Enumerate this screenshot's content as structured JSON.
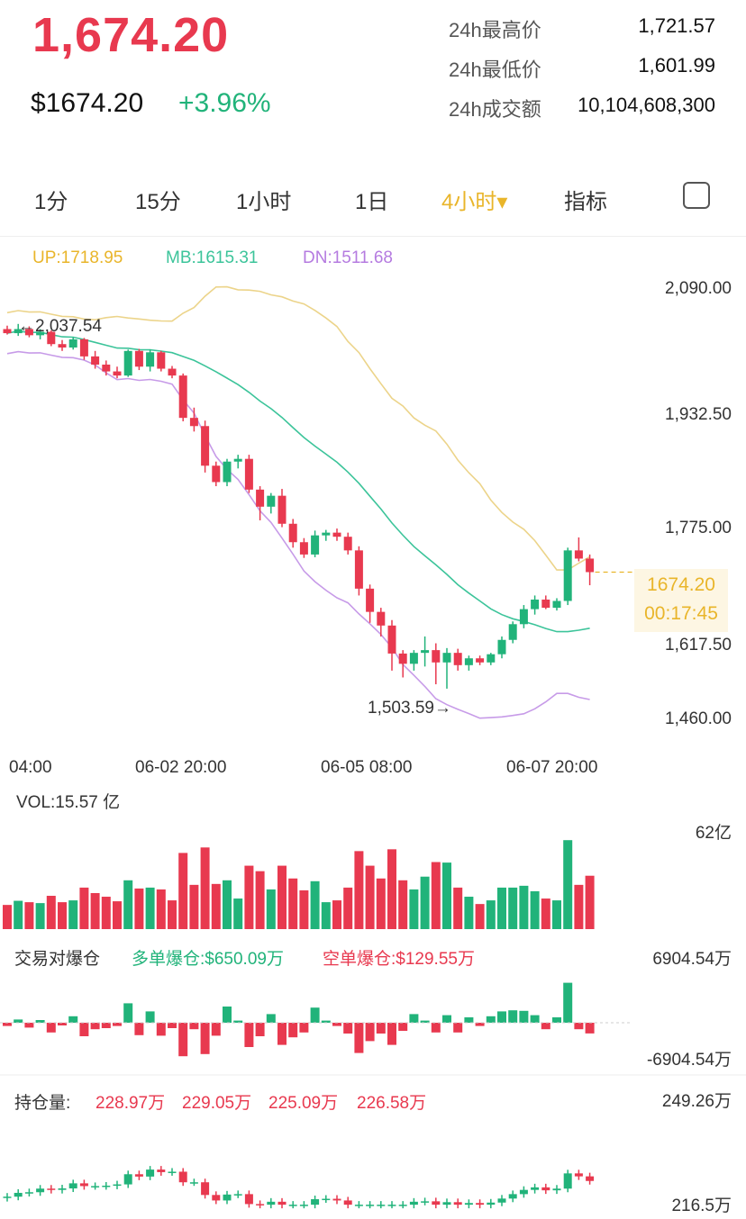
{
  "header": {
    "last_price": "1,674.20",
    "usd_price": "$1674.20",
    "change_pct": "+3.96%",
    "stats": [
      {
        "label": "24h最高价",
        "value": "1,721.57"
      },
      {
        "label": "24h最低价",
        "value": "1,601.99"
      },
      {
        "label": "24h成交额",
        "value": "10,104,608,300"
      }
    ]
  },
  "tabs": [
    {
      "label": "1分",
      "active": false
    },
    {
      "label": "15分",
      "active": false
    },
    {
      "label": "1小时",
      "active": false
    },
    {
      "label": "1日",
      "active": false
    },
    {
      "label": "4小时▾",
      "active": true
    },
    {
      "label": "指标",
      "active": false
    }
  ],
  "indicators": {
    "up": "UP:1718.95",
    "mb": "MB:1615.31",
    "dn": "DN:1511.68"
  },
  "colors": {
    "up": "#21b37a",
    "down": "#e8394f",
    "upper_band": "#ecd48a",
    "middle_band": "#3cc49a",
    "lower_band": "#c79be8",
    "accent": "#e9b52a"
  },
  "main_chart": {
    "y_labels": [
      "2,090.00",
      "1,932.50",
      "1,775.00",
      "1,617.50",
      "1,460.00"
    ],
    "x_labels": [
      "04:00",
      "06-02 20:00",
      "06-05 08:00",
      "06-07 20:00"
    ],
    "high_marker": "←2,037.54",
    "low_marker": "1,503.59→",
    "current_price_tag": "1674.20",
    "countdown": "00:17:45"
  },
  "volume": {
    "label": "VOL:15.57 亿",
    "max_label": "62亿"
  },
  "liquidation": {
    "title": "交易对爆仓",
    "long": "多单爆仓:$650.09万",
    "short": "空单爆仓:$129.55万",
    "max_label": "6904.54万",
    "min_label": "-6904.54万"
  },
  "open_interest": {
    "title": "持仓量:",
    "values": [
      "228.97万",
      "229.05万",
      "225.09万",
      "226.58万"
    ],
    "max_label": "249.26万",
    "min_label": "216.5万"
  },
  "chart_data": {
    "type": "candlestick",
    "ylim": [
      1460,
      2090
    ],
    "candles": [
      [
        2030,
        2035,
        2022,
        2024
      ],
      [
        2024,
        2037.54,
        2020,
        2030
      ],
      [
        2030,
        2034,
        2018,
        2021
      ],
      [
        2021,
        2030,
        2015,
        2026
      ],
      [
        2026,
        2028,
        2005,
        2008
      ],
      [
        2008,
        2014,
        1998,
        2003
      ],
      [
        2003,
        2018,
        2000,
        2015
      ],
      [
        2015,
        2017,
        1985,
        1990
      ],
      [
        1990,
        1998,
        1972,
        1978
      ],
      [
        1978,
        1984,
        1962,
        1968
      ],
      [
        1968,
        1975,
        1958,
        1962
      ],
      [
        1962,
        2000,
        1960,
        1998
      ],
      [
        1998,
        2001,
        1970,
        1975
      ],
      [
        1975,
        2000,
        1968,
        1996
      ],
      [
        1996,
        1998,
        1968,
        1972
      ],
      [
        1972,
        1976,
        1958,
        1962
      ],
      [
        1962,
        1965,
        1895,
        1900
      ],
      [
        1900,
        1915,
        1880,
        1888
      ],
      [
        1888,
        1896,
        1820,
        1830
      ],
      [
        1830,
        1836,
        1800,
        1806
      ],
      [
        1806,
        1840,
        1800,
        1836
      ],
      [
        1836,
        1846,
        1826,
        1840
      ],
      [
        1840,
        1846,
        1790,
        1795
      ],
      [
        1795,
        1800,
        1750,
        1770
      ],
      [
        1770,
        1790,
        1760,
        1786
      ],
      [
        1786,
        1796,
        1740,
        1745
      ],
      [
        1745,
        1752,
        1710,
        1718
      ],
      [
        1718,
        1724,
        1695,
        1700
      ],
      [
        1700,
        1735,
        1696,
        1728
      ],
      [
        1728,
        1736,
        1720,
        1732
      ],
      [
        1732,
        1738,
        1720,
        1726
      ],
      [
        1726,
        1732,
        1700,
        1706
      ],
      [
        1706,
        1712,
        1640,
        1650
      ],
      [
        1650,
        1656,
        1600,
        1616
      ],
      [
        1616,
        1622,
        1580,
        1596
      ],
      [
        1596,
        1604,
        1530,
        1555
      ],
      [
        1555,
        1560,
        1520,
        1540
      ],
      [
        1540,
        1560,
        1530,
        1556
      ],
      [
        1556,
        1580,
        1536,
        1560
      ],
      [
        1560,
        1570,
        1510,
        1542
      ],
      [
        1542,
        1563,
        1503.59,
        1556
      ],
      [
        1556,
        1562,
        1530,
        1538
      ],
      [
        1538,
        1552,
        1530,
        1548
      ],
      [
        1548,
        1552,
        1538,
        1542
      ],
      [
        1542,
        1556,
        1538,
        1554
      ],
      [
        1554,
        1580,
        1548,
        1575
      ],
      [
        1575,
        1602,
        1570,
        1598
      ],
      [
        1598,
        1626,
        1592,
        1620
      ],
      [
        1620,
        1640,
        1612,
        1634
      ],
      [
        1634,
        1640,
        1620,
        1622
      ],
      [
        1622,
        1636,
        1618,
        1632
      ],
      [
        1632,
        1710,
        1626,
        1706
      ],
      [
        1706,
        1725,
        1690,
        1694
      ],
      [
        1694,
        1700,
        1655,
        1674.2
      ]
    ]
  }
}
